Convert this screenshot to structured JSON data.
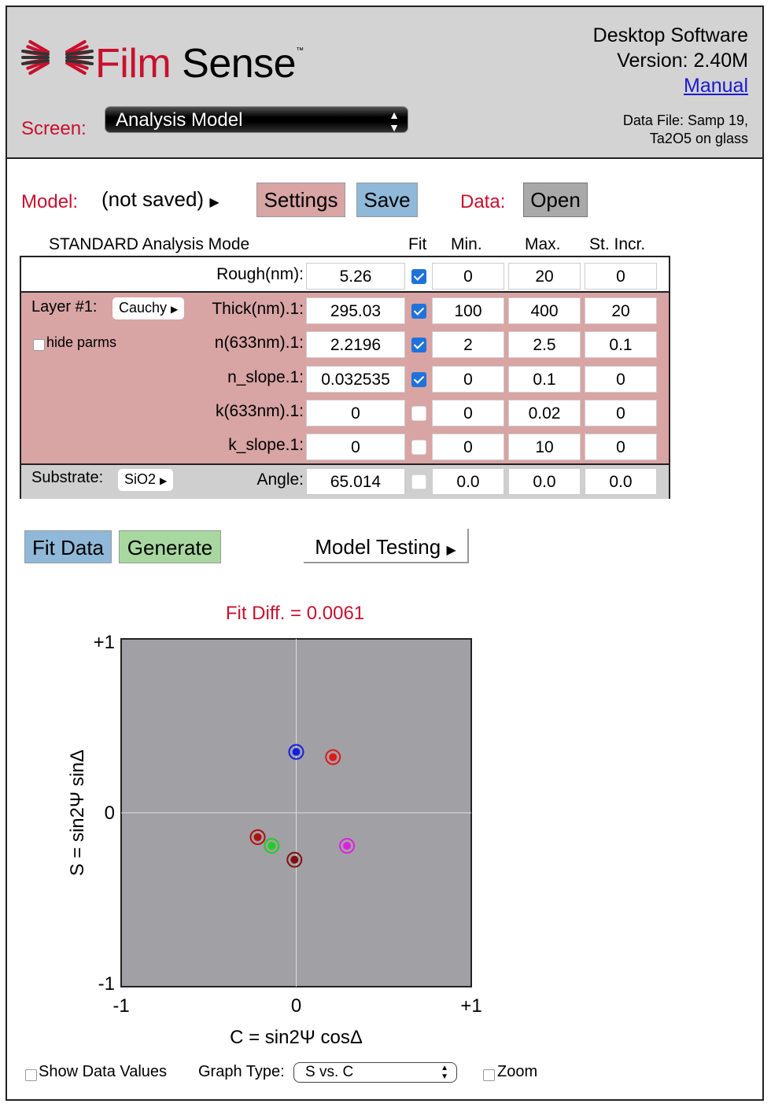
{
  "header": {
    "logo_word1": "Film",
    "logo_word2": "Sense",
    "logo_tm": "™",
    "software_line1": "Desktop Software",
    "software_line2": "Version: 2.40M",
    "manual_link": "Manual",
    "data_file_line1": "Data File: Samp 19,",
    "data_file_line2": "Ta2O5 on glass",
    "screen_label": "Screen:",
    "screen_value": "Analysis Model"
  },
  "toolbar": {
    "model_label": "Model:",
    "model_value": "(not saved)",
    "settings_label": "Settings",
    "save_label": "Save",
    "data_label": "Data:",
    "open_label": "Open"
  },
  "table": {
    "mode_title": "STANDARD Analysis Mode",
    "col_fit": "Fit",
    "col_min": "Min.",
    "col_max": "Max.",
    "col_incr": "St. Incr.",
    "rough": {
      "label": "Rough(nm):",
      "value": "5.26",
      "fit": true,
      "min": "0",
      "max": "20",
      "incr": "0"
    },
    "layer_label": "Layer #1:",
    "layer_type": "Cauchy",
    "hide_parms": "hide parms",
    "layer_rows": [
      {
        "label": "Thick(nm).1:",
        "value": "295.03",
        "fit": true,
        "min": "100",
        "max": "400",
        "incr": "20"
      },
      {
        "label": "n(633nm).1:",
        "value": "2.2196",
        "fit": true,
        "min": "2",
        "max": "2.5",
        "incr": "0.1"
      },
      {
        "label": "n_slope.1:",
        "value": "0.032535",
        "fit": true,
        "min": "0",
        "max": "0.1",
        "incr": "0"
      },
      {
        "label": "k(633nm).1:",
        "value": "0",
        "fit": false,
        "min": "0",
        "max": "0.02",
        "incr": "0"
      },
      {
        "label": "k_slope.1:",
        "value": "0",
        "fit": false,
        "min": "0",
        "max": "10",
        "incr": "0"
      }
    ],
    "substrate_label": "Substrate:",
    "substrate_value": "SiO2",
    "angle": {
      "label": "Angle:",
      "value": "65.014",
      "fit": false,
      "min": "0.0",
      "max": "0.0",
      "incr": "0.0"
    }
  },
  "actions": {
    "fit_data": "Fit Data",
    "generate": "Generate",
    "model_testing": "Model Testing"
  },
  "chart_data": {
    "type": "scatter",
    "title": "Fit Diff. = 0.0061",
    "xlabel": "C = sin2Ψ cosΔ",
    "ylabel": "S = sin2Ψ sinΔ",
    "xlim": [
      -1,
      1
    ],
    "ylim": [
      -1,
      1
    ],
    "x_ticks": [
      "-1",
      "0",
      "+1"
    ],
    "y_ticks": [
      "+1",
      "0",
      "-1"
    ],
    "grid": "center lines only",
    "points": [
      {
        "color": "#1020e0",
        "x": 0.0,
        "y": 0.35
      },
      {
        "color": "#e01818",
        "x": 0.21,
        "y": 0.32
      },
      {
        "color": "#b01010",
        "x": -0.22,
        "y": -0.14
      },
      {
        "color": "#20d020",
        "x": -0.14,
        "y": -0.19
      },
      {
        "color": "#801010",
        "x": -0.01,
        "y": -0.27
      },
      {
        "color": "#e020e0",
        "x": 0.29,
        "y": -0.19
      }
    ]
  },
  "footer": {
    "show_values": "Show Data Values",
    "graph_type_label": "Graph Type:",
    "graph_type_value": "S vs. C",
    "zoom": "Zoom"
  }
}
